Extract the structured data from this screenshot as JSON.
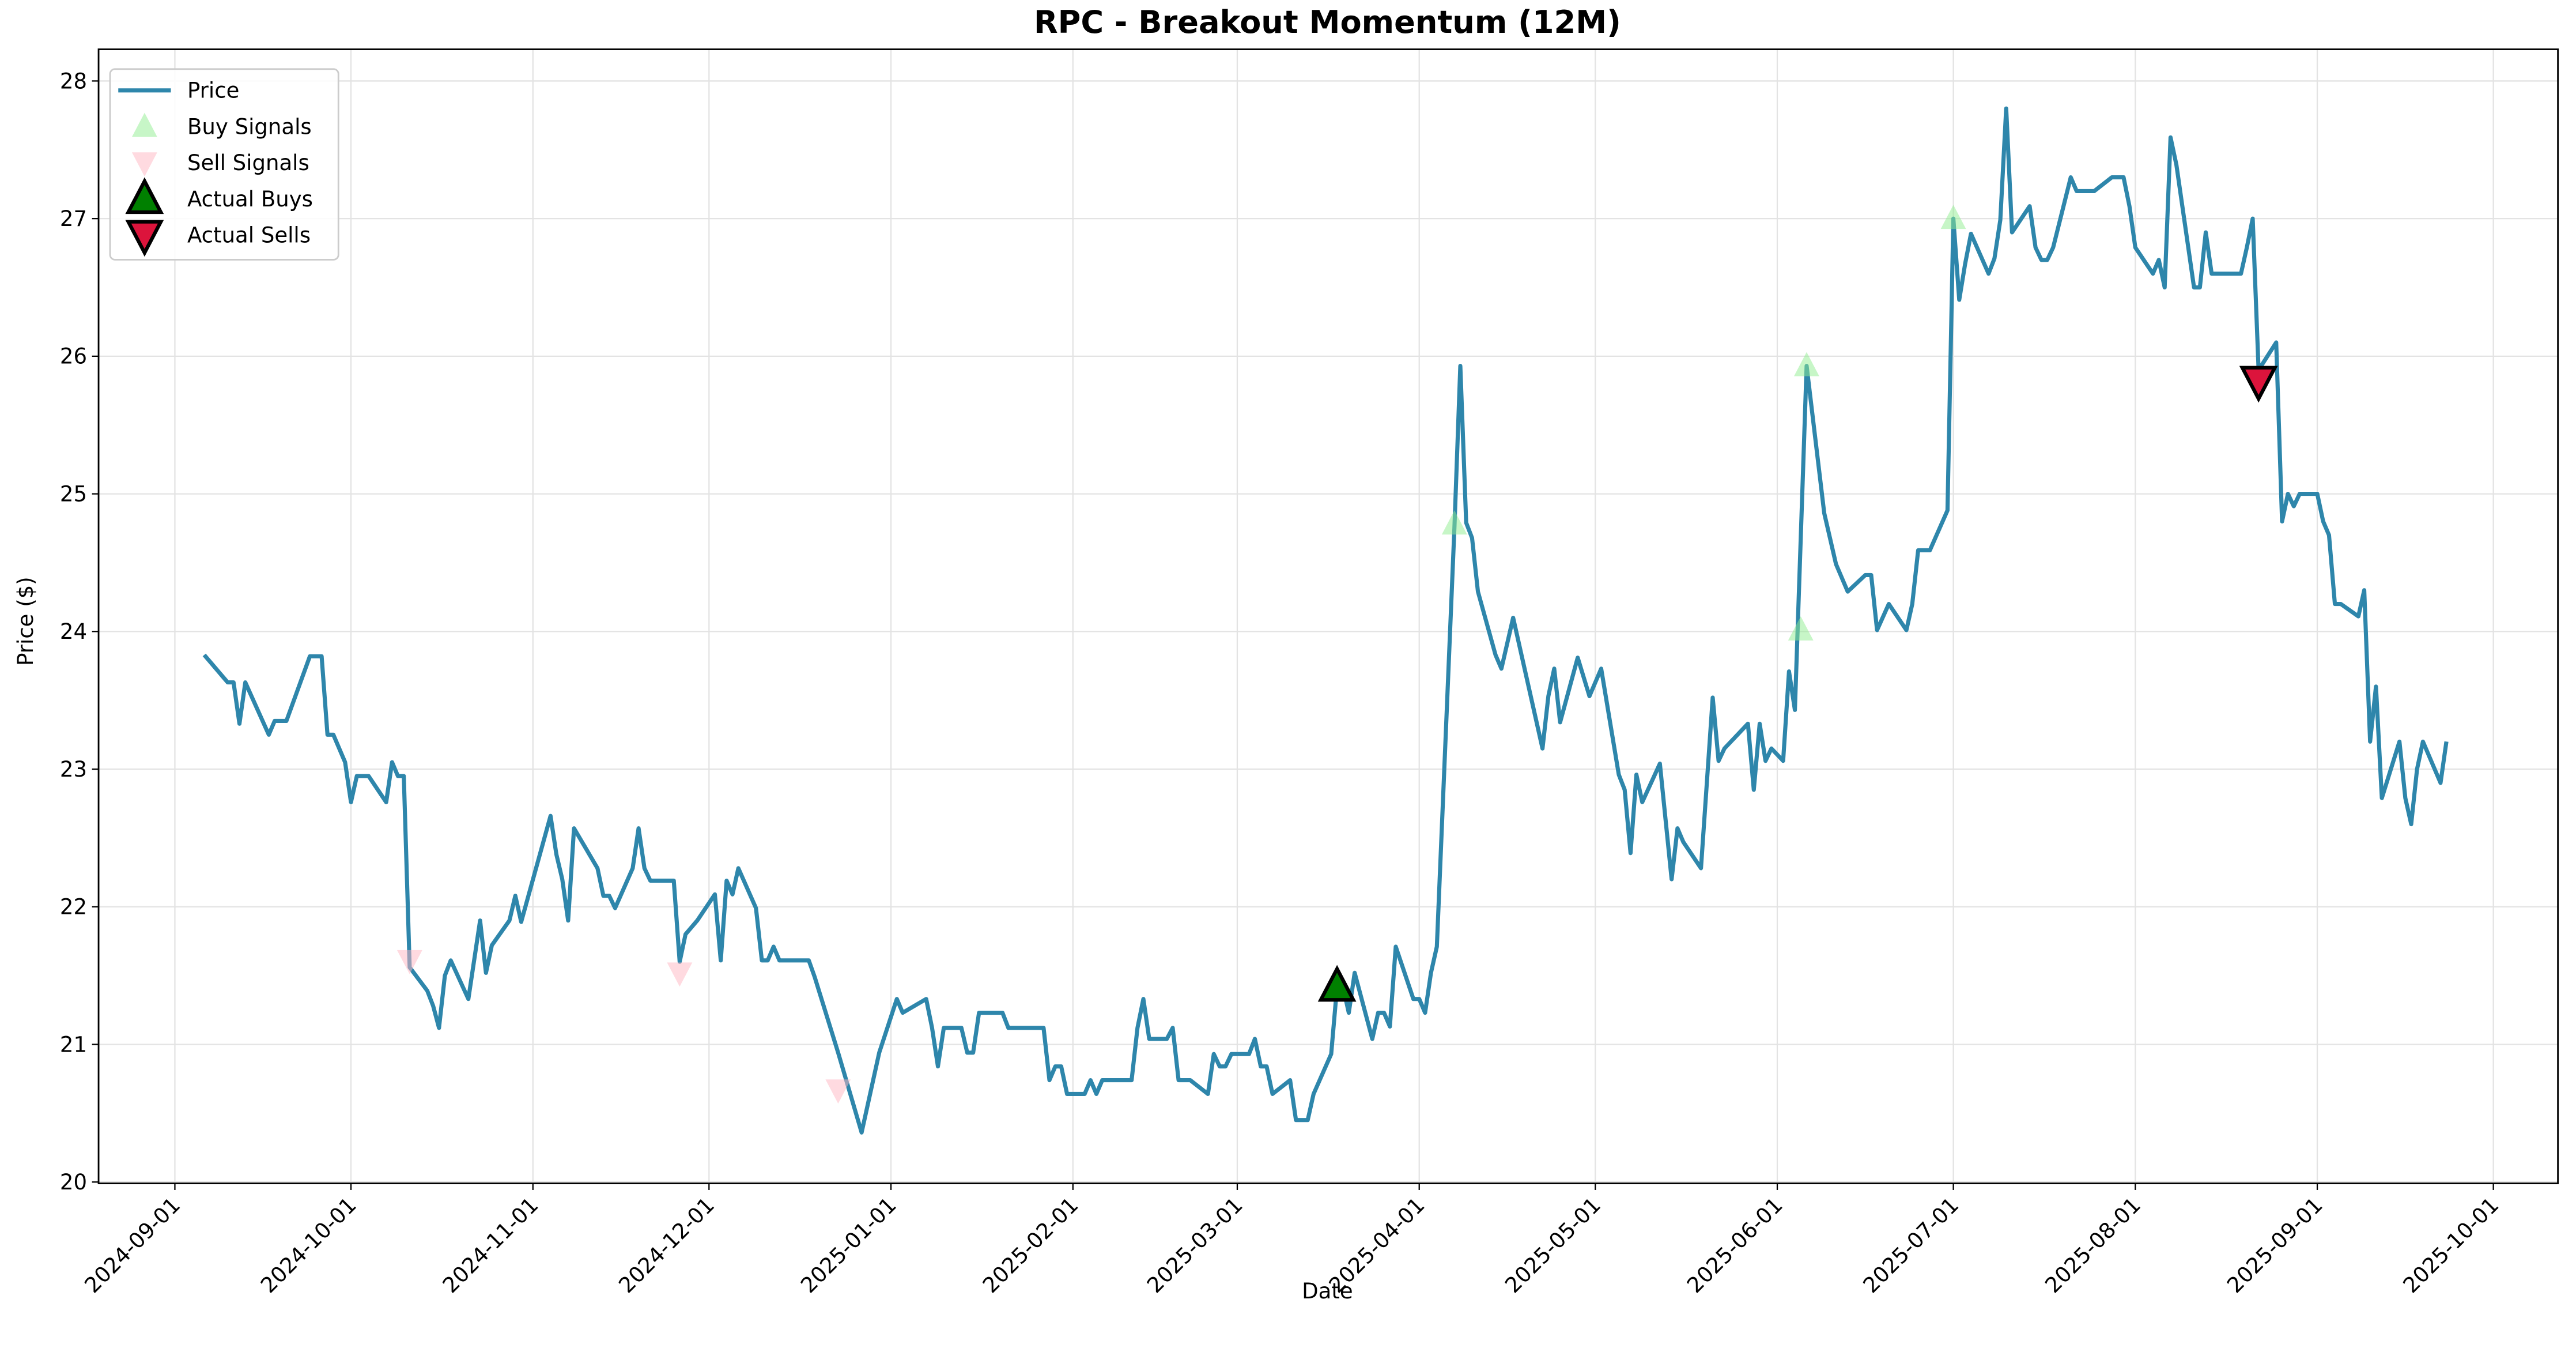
{
  "chart_data": {
    "type": "line",
    "title": "RPC - Breakout Momentum (12M)",
    "x_label": "Date",
    "y_label": "Price ($)",
    "xlim": [
      "2024-08-19",
      "2025-10-12"
    ],
    "ylim": [
      19.99,
      28.23
    ],
    "xticks": [
      "2024-09-01",
      "2024-10-01",
      "2024-11-01",
      "2024-12-01",
      "2025-01-01",
      "2025-02-01",
      "2025-03-01",
      "2025-04-01",
      "2025-05-01",
      "2025-06-01",
      "2025-07-01",
      "2025-08-01",
      "2025-09-01",
      "2025-10-01"
    ],
    "yticks": [
      20,
      21,
      22,
      23,
      24,
      25,
      26,
      27,
      28
    ],
    "grid": true,
    "legend": "upper left",
    "series": [
      {
        "name": "Price",
        "marker": "line",
        "color": "#2e86ab",
        "x": [
          "2024-09-06",
          "2024-09-10",
          "2024-09-11",
          "2024-09-12",
          "2024-09-13",
          "2024-09-17",
          "2024-09-18",
          "2024-09-20",
          "2024-09-24",
          "2024-09-26",
          "2024-09-27",
          "2024-09-28",
          "2024-09-30",
          "2024-10-01",
          "2024-10-02",
          "2024-10-04",
          "2024-10-07",
          "2024-10-08",
          "2024-10-09",
          "2024-10-10",
          "2024-10-11",
          "2024-10-14",
          "2024-10-15",
          "2024-10-16",
          "2024-10-17",
          "2024-10-18",
          "2024-10-21",
          "2024-10-23",
          "2024-10-24",
          "2024-10-25",
          "2024-10-28",
          "2024-10-29",
          "2024-10-30",
          "2024-11-04",
          "2024-11-05",
          "2024-11-06",
          "2024-11-07",
          "2024-11-08",
          "2024-11-12",
          "2024-11-13",
          "2024-11-14",
          "2024-11-15",
          "2024-11-18",
          "2024-11-19",
          "2024-11-20",
          "2024-11-21",
          "2024-11-25",
          "2024-11-26",
          "2024-11-27",
          "2024-11-29",
          "2024-12-02",
          "2024-12-03",
          "2024-12-04",
          "2024-12-05",
          "2024-12-06",
          "2024-12-09",
          "2024-12-10",
          "2024-12-11",
          "2024-12-12",
          "2024-12-13",
          "2024-12-18",
          "2024-12-19",
          "2024-12-23",
          "2024-12-27",
          "2024-12-30",
          "2025-01-02",
          "2025-01-03",
          "2025-01-07",
          "2025-01-08",
          "2025-01-09",
          "2025-01-10",
          "2025-01-13",
          "2025-01-14",
          "2025-01-15",
          "2025-01-16",
          "2025-01-20",
          "2025-01-21",
          "2025-01-27",
          "2025-01-28",
          "2025-01-29",
          "2025-01-30",
          "2025-01-31",
          "2025-02-03",
          "2025-02-04",
          "2025-02-05",
          "2025-02-06",
          "2025-02-11",
          "2025-02-12",
          "2025-02-13",
          "2025-02-14",
          "2025-02-17",
          "2025-02-18",
          "2025-02-19",
          "2025-02-21",
          "2025-02-24",
          "2025-02-25",
          "2025-02-26",
          "2025-02-27",
          "2025-02-28",
          "2025-03-03",
          "2025-03-04",
          "2025-03-05",
          "2025-03-06",
          "2025-03-07",
          "2025-03-10",
          "2025-03-11",
          "2025-03-13",
          "2025-03-14",
          "2025-03-17",
          "2025-03-18",
          "2025-03-19",
          "2025-03-20",
          "2025-03-21",
          "2025-03-24",
          "2025-03-25",
          "2025-03-26",
          "2025-03-27",
          "2025-03-28",
          "2025-03-31",
          "2025-04-01",
          "2025-04-02",
          "2025-04-03",
          "2025-04-04",
          "2025-04-07",
          "2025-04-08",
          "2025-04-09",
          "2025-04-10",
          "2025-04-11",
          "2025-04-14",
          "2025-04-15",
          "2025-04-17",
          "2025-04-22",
          "2025-04-23",
          "2025-04-24",
          "2025-04-25",
          "2025-04-28",
          "2025-04-30",
          "2025-05-02",
          "2025-05-05",
          "2025-05-06",
          "2025-05-07",
          "2025-05-08",
          "2025-05-09",
          "2025-05-12",
          "2025-05-14",
          "2025-05-15",
          "2025-05-16",
          "2025-05-19",
          "2025-05-21",
          "2025-05-22",
          "2025-05-23",
          "2025-05-27",
          "2025-05-28",
          "2025-05-29",
          "2025-05-30",
          "2025-05-31",
          "2025-06-02",
          "2025-06-03",
          "2025-06-04",
          "2025-06-06",
          "2025-06-09",
          "2025-06-11",
          "2025-06-13",
          "2025-06-16",
          "2025-06-17",
          "2025-06-18",
          "2025-06-20",
          "2025-06-23",
          "2025-06-24",
          "2025-06-25",
          "2025-06-27",
          "2025-06-30",
          "2025-07-01",
          "2025-07-02",
          "2025-07-03",
          "2025-07-04",
          "2025-07-07",
          "2025-07-08",
          "2025-07-09",
          "2025-07-10",
          "2025-07-11",
          "2025-07-14",
          "2025-07-15",
          "2025-07-16",
          "2025-07-17",
          "2025-07-18",
          "2025-07-21",
          "2025-07-22",
          "2025-07-25",
          "2025-07-28",
          "2025-07-30",
          "2025-07-31",
          "2025-08-01",
          "2025-08-04",
          "2025-08-05",
          "2025-08-06",
          "2025-08-07",
          "2025-08-08",
          "2025-08-11",
          "2025-08-12",
          "2025-08-13",
          "2025-08-14",
          "2025-08-19",
          "2025-08-20",
          "2025-08-21",
          "2025-08-22",
          "2025-08-25",
          "2025-08-26",
          "2025-08-27",
          "2025-08-28",
          "2025-08-29",
          "2025-09-01",
          "2025-09-02",
          "2025-09-03",
          "2025-09-04",
          "2025-09-05",
          "2025-09-08",
          "2025-09-09",
          "2025-09-10",
          "2025-09-11",
          "2025-09-12",
          "2025-09-15",
          "2025-09-16",
          "2025-09-17",
          "2025-09-18",
          "2025-09-19",
          "2025-09-22",
          "2025-09-23"
        ],
        "values": [
          23.83,
          23.63,
          23.63,
          23.33,
          23.63,
          23.25,
          23.35,
          23.35,
          23.82,
          23.82,
          23.25,
          23.25,
          23.05,
          22.76,
          22.95,
          22.95,
          22.76,
          23.05,
          22.95,
          22.95,
          21.56,
          21.39,
          21.28,
          21.12,
          21.5,
          21.61,
          21.33,
          21.9,
          21.52,
          21.72,
          21.9,
          22.08,
          21.89,
          22.66,
          22.38,
          22.2,
          21.9,
          22.57,
          22.28,
          22.08,
          22.08,
          21.99,
          22.28,
          22.57,
          22.28,
          22.19,
          22.19,
          21.6,
          21.8,
          21.9,
          22.09,
          21.61,
          22.19,
          22.09,
          22.28,
          21.99,
          21.61,
          21.61,
          21.71,
          21.61,
          21.61,
          21.49,
          20.94,
          20.36,
          20.94,
          21.33,
          21.23,
          21.33,
          21.12,
          20.84,
          21.12,
          21.12,
          20.94,
          20.94,
          21.23,
          21.23,
          21.12,
          21.12,
          20.74,
          20.84,
          20.84,
          20.64,
          20.64,
          20.74,
          20.64,
          20.74,
          20.74,
          21.12,
          21.33,
          21.04,
          21.04,
          21.12,
          20.74,
          20.74,
          20.64,
          20.93,
          20.84,
          20.84,
          20.93,
          20.93,
          21.04,
          20.84,
          20.84,
          20.64,
          20.74,
          20.45,
          20.45,
          20.64,
          20.93,
          21.42,
          21.42,
          21.23,
          21.52,
          21.04,
          21.23,
          21.23,
          21.13,
          21.71,
          21.33,
          21.33,
          21.23,
          21.52,
          21.71,
          24.76,
          25.93,
          24.79,
          24.68,
          24.29,
          23.83,
          23.73,
          24.1,
          23.15,
          23.53,
          23.73,
          23.34,
          23.81,
          23.53,
          23.73,
          22.96,
          22.85,
          22.39,
          22.96,
          22.76,
          23.04,
          22.2,
          22.57,
          22.47,
          22.28,
          23.52,
          23.06,
          23.15,
          23.33,
          22.85,
          23.33,
          23.06,
          23.15,
          23.06,
          23.71,
          23.43,
          25.93,
          24.86,
          24.49,
          24.29,
          24.41,
          24.41,
          24.01,
          24.2,
          24.01,
          24.2,
          24.59,
          24.59,
          24.88,
          27.0,
          26.41,
          26.67,
          26.89,
          26.6,
          26.71,
          26.99,
          27.8,
          26.9,
          27.09,
          26.79,
          26.7,
          26.7,
          26.79,
          27.3,
          27.2,
          27.2,
          27.3,
          27.3,
          27.09,
          26.79,
          26.6,
          26.7,
          26.5,
          27.59,
          27.39,
          26.5,
          26.5,
          26.9,
          26.6,
          26.6,
          26.79,
          27.0,
          25.9,
          26.1,
          24.8,
          25.0,
          24.91,
          25.0,
          25.0,
          24.8,
          24.7,
          24.2,
          24.2,
          24.11,
          24.3,
          23.2,
          23.6,
          22.79,
          23.2,
          22.79,
          22.6,
          23.0,
          23.2,
          22.9,
          23.2
        ]
      },
      {
        "name": "Buy Signals",
        "marker": "triangle-up",
        "color": "#90ee90",
        "alpha": 0.5,
        "x": [
          "2025-04-07",
          "2025-06-05",
          "2025-06-06",
          "2025-07-01"
        ],
        "values": [
          24.78,
          24.01,
          25.93,
          27.0
        ]
      },
      {
        "name": "Sell Signals",
        "marker": "triangle-down",
        "color": "#ffb6c1",
        "alpha": 0.5,
        "x": [
          "2024-10-11",
          "2024-11-26",
          "2024-12-23"
        ],
        "values": [
          21.61,
          21.52,
          20.67
        ]
      },
      {
        "name": "Actual Buys",
        "marker": "triangle-up",
        "color": "#008000",
        "edgecolor": "#000000",
        "alpha": 1,
        "x": [
          "2025-03-18"
        ],
        "values": [
          21.42
        ]
      },
      {
        "name": "Actual Sells",
        "marker": "triangle-down",
        "color": "#dc143c",
        "edgecolor": "#000000",
        "alpha": 1,
        "x": [
          "2025-08-22"
        ],
        "values": [
          25.82
        ]
      }
    ]
  }
}
